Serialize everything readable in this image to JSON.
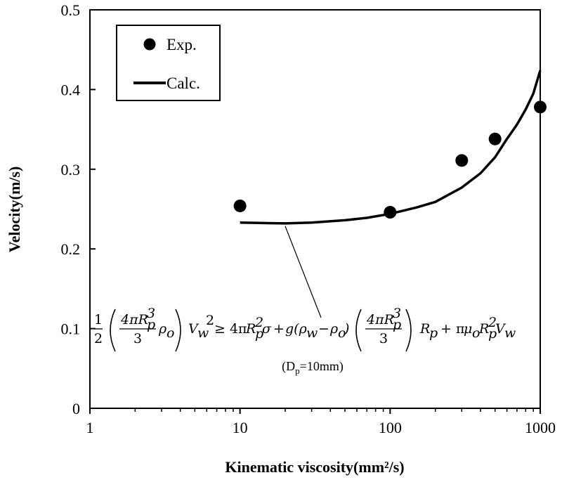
{
  "chart_data": {
    "type": "scatter",
    "xlabel": "Kinematic viscosity(mm²/s)",
    "ylabel": "Velocity(m/s)",
    "x_scale": "log",
    "xlim": [
      1,
      1000
    ],
    "ylim": [
      0,
      0.5
    ],
    "x_ticks": [
      "1",
      "10",
      "100",
      "1000"
    ],
    "y_ticks": [
      "0",
      "0.1",
      "0.2",
      "0.3",
      "0.4",
      "0.5"
    ],
    "grid": false,
    "legend_position": "top-left",
    "series": [
      {
        "name": "Exp.",
        "kind": "scatter",
        "x": [
          10,
          100,
          300,
          500,
          1000
        ],
        "y": [
          0.254,
          0.246,
          0.311,
          0.338,
          0.378
        ]
      },
      {
        "name": "Calc.",
        "kind": "line",
        "x": [
          10,
          20,
          30,
          50,
          70,
          100,
          150,
          200,
          300,
          400,
          500,
          600,
          700,
          800,
          900,
          1000
        ],
        "y": [
          0.233,
          0.232,
          0.233,
          0.236,
          0.239,
          0.244,
          0.252,
          0.259,
          0.277,
          0.295,
          0.315,
          0.338,
          0.356,
          0.375,
          0.395,
          0.424
        ]
      }
    ],
    "annotation": {
      "equation": "1/2 (4πR_p^3/3 ρ_o) V_w^2 ≥ 4πR_p^2σ + g(ρ_w − ρ_o) (4πR_p^3/3) R_p + πμ_o R_p^2 V_w",
      "note": "(D_p=10mm)",
      "pointer_target": {
        "x": 20,
        "y": 0.232
      }
    }
  }
}
